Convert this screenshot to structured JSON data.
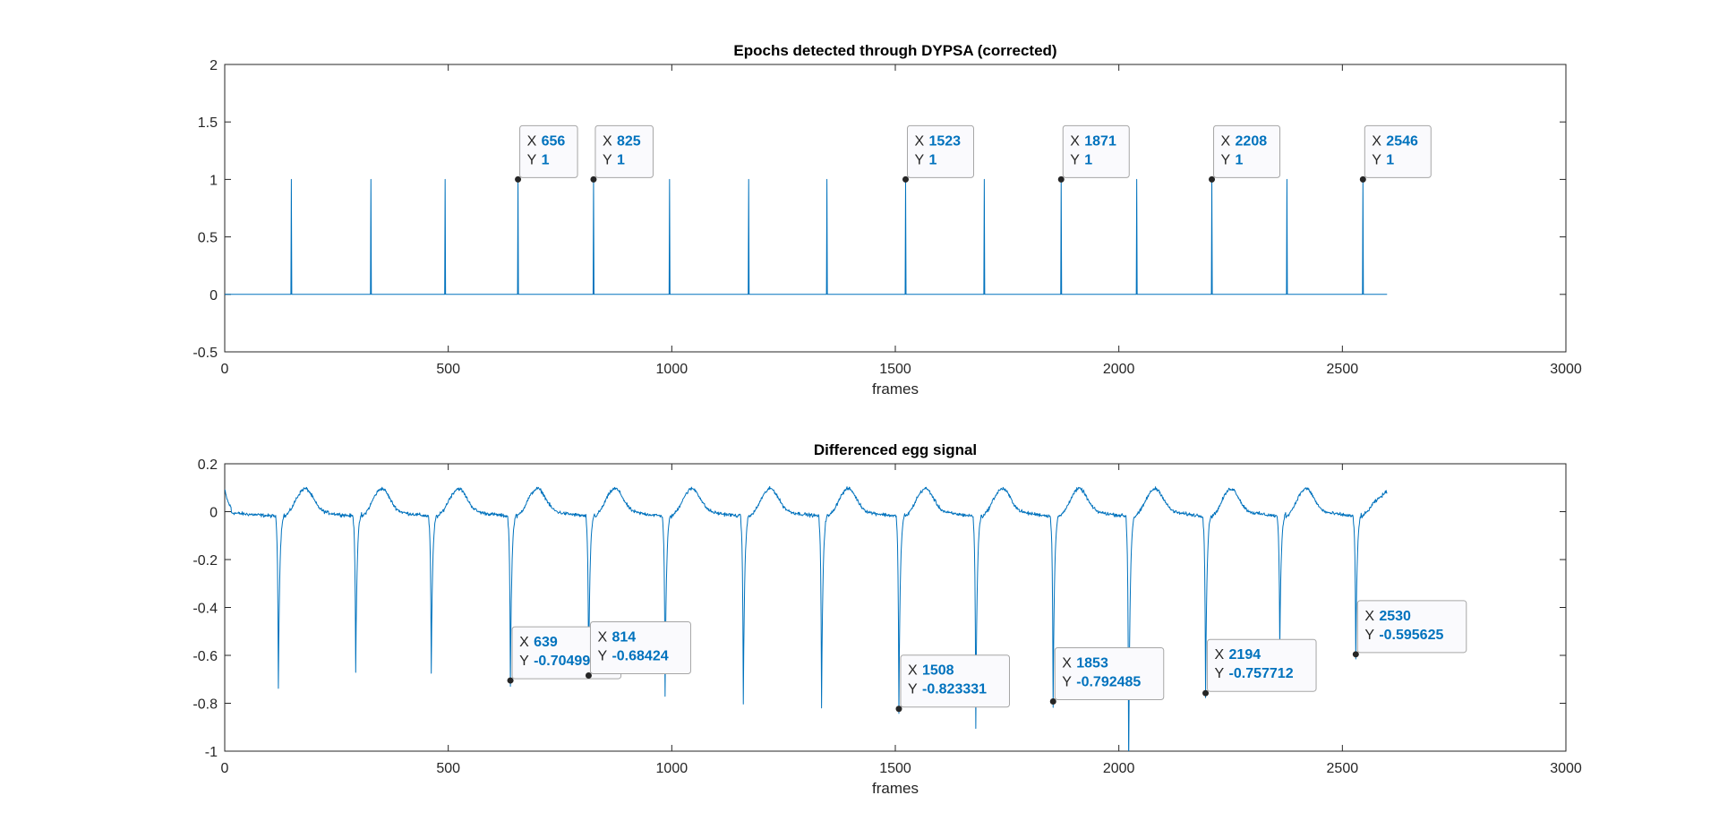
{
  "chart_data": [
    {
      "type": "line",
      "title": "Epochs detected through DYPSA (corrected)",
      "xlabel": "frames",
      "ylabel": "",
      "xlim": [
        0,
        3000
      ],
      "ylim": [
        -0.5,
        2
      ],
      "xticks": [
        0,
        500,
        1000,
        1500,
        2000,
        2500,
        3000
      ],
      "xtick_labels": [
        "0",
        "500",
        "1000",
        "1500",
        "2000",
        "2500",
        "3000"
      ],
      "yticks": [
        -0.5,
        0,
        0.5,
        1,
        1.5,
        2
      ],
      "ytick_labels": [
        "-0.5",
        "0",
        "0.5",
        "1",
        "1.5",
        "2"
      ],
      "line_color": "#0072bd",
      "grid": false,
      "signal_range": [
        0,
        2600
      ],
      "baseline": 0,
      "spikes_x": [
        149,
        327,
        493,
        656,
        825,
        995,
        1172,
        1347,
        1523,
        1699,
        1871,
        2040,
        2208,
        2376,
        2546
      ],
      "spike_value": 1,
      "datatips": [
        {
          "x": 656,
          "y": 1,
          "x_label": "X",
          "x_text": "656",
          "y_label": "Y",
          "y_text": "1",
          "position": "above-right"
        },
        {
          "x": 825,
          "y": 1,
          "x_label": "X",
          "x_text": "825",
          "y_label": "Y",
          "y_text": "1",
          "position": "above-right"
        },
        {
          "x": 1523,
          "y": 1,
          "x_label": "X",
          "x_text": "1523",
          "y_label": "Y",
          "y_text": "1",
          "position": "above-right"
        },
        {
          "x": 1871,
          "y": 1,
          "x_label": "X",
          "x_text": "1871",
          "y_label": "Y",
          "y_text": "1",
          "position": "above-right"
        },
        {
          "x": 2208,
          "y": 1,
          "x_label": "X",
          "x_text": "2208",
          "y_label": "Y",
          "y_text": "1",
          "position": "above-right"
        },
        {
          "x": 2546,
          "y": 1,
          "x_label": "X",
          "x_text": "2546",
          "y_label": "Y",
          "y_text": "1",
          "position": "above-right"
        }
      ]
    },
    {
      "type": "line",
      "title": "Differenced egg signal",
      "xlabel": "frames",
      "ylabel": "",
      "xlim": [
        0,
        3000
      ],
      "ylim": [
        -1,
        0.2
      ],
      "xticks": [
        0,
        500,
        1000,
        1500,
        2000,
        2500,
        3000
      ],
      "xtick_labels": [
        "0",
        "500",
        "1000",
        "1500",
        "2000",
        "2500",
        "3000"
      ],
      "yticks": [
        -1,
        -0.8,
        -0.6,
        -0.4,
        -0.2,
        0,
        0.2
      ],
      "ytick_labels": [
        "-1",
        "-0.8",
        "-0.6",
        "-0.4",
        "-0.2",
        "0",
        "0.2"
      ],
      "line_color": "#0072bd",
      "grid": false,
      "signal_range": [
        0,
        2600
      ],
      "dips": [
        {
          "x": 120,
          "min": -0.72
        },
        {
          "x": 293,
          "min": -0.65
        },
        {
          "x": 462,
          "min": -0.65
        },
        {
          "x": 639,
          "min": -0.704992
        },
        {
          "x": 814,
          "min": -0.68424
        },
        {
          "x": 985,
          "min": -0.75
        },
        {
          "x": 1160,
          "min": -0.79
        },
        {
          "x": 1335,
          "min": -0.8
        },
        {
          "x": 1508,
          "min": -0.823331
        },
        {
          "x": 1680,
          "min": -0.88
        },
        {
          "x": 1853,
          "min": -0.792485
        },
        {
          "x": 2022,
          "min": -1.05
        },
        {
          "x": 2194,
          "min": -0.757712
        },
        {
          "x": 2360,
          "min": -0.56
        },
        {
          "x": 2530,
          "min": -0.595625
        }
      ],
      "datatips": [
        {
          "x": 639,
          "y": -0.704992,
          "x_label": "X",
          "x_text": "639",
          "y_label": "Y",
          "y_text": "-0.704992",
          "position": "above-right"
        },
        {
          "x": 814,
          "y": -0.68424,
          "x_label": "X",
          "x_text": "814",
          "y_label": "Y",
          "y_text": "-0.68424",
          "position": "above-right"
        },
        {
          "x": 1508,
          "y": -0.823331,
          "x_label": "X",
          "x_text": "1508",
          "y_label": "Y",
          "y_text": "-0.823331",
          "position": "above-right"
        },
        {
          "x": 1853,
          "y": -0.792485,
          "x_label": "X",
          "x_text": "1853",
          "y_label": "Y",
          "y_text": "-0.792485",
          "position": "above-right"
        },
        {
          "x": 2194,
          "y": -0.757712,
          "x_label": "X",
          "x_text": "2194",
          "y_label": "Y",
          "y_text": "-0.757712",
          "position": "above-right"
        },
        {
          "x": 2530,
          "y": -0.595625,
          "x_label": "X",
          "x_text": "2530",
          "y_label": "Y",
          "y_text": "-0.595625",
          "position": "above-right"
        }
      ]
    }
  ]
}
